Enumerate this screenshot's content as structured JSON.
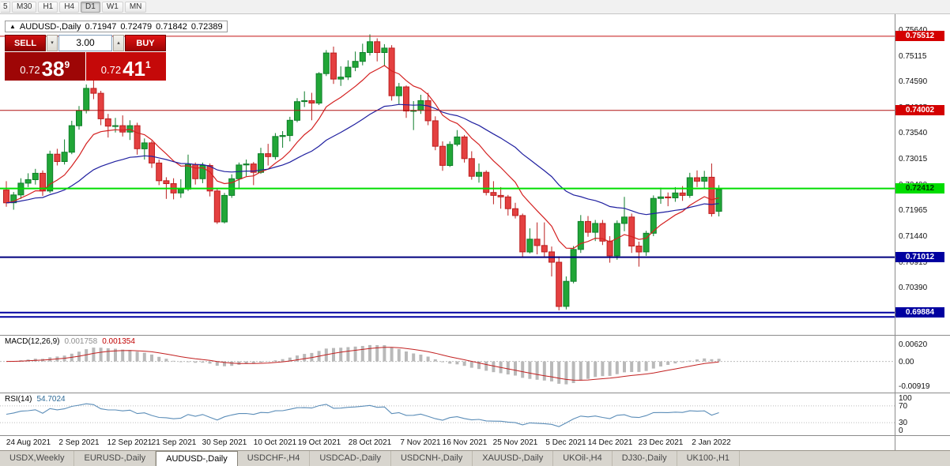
{
  "icons": {
    "collapse": "▲",
    "spin_up": "▴",
    "spin_down": "▾"
  },
  "toolbar": {
    "partial": "5",
    "active": "D1",
    "timeframes": [
      "M30",
      "H1",
      "H4",
      "D1",
      "W1",
      "MN"
    ]
  },
  "chart": {
    "symbol": "AUDUSD-,Daily",
    "ohlc": {
      "o": "0.71947",
      "h": "0.72479",
      "l": "0.71842",
      "c": "0.72389"
    },
    "trade": {
      "sell_label": "SELL",
      "buy_label": "BUY",
      "volume": "3.00",
      "sell_price": {
        "base": "0.72",
        "big": "38",
        "sup": "9"
      },
      "buy_price": {
        "base": "0.72",
        "big": "41",
        "sup": "1"
      }
    },
    "hlines": [
      {
        "price": 0.75512,
        "label": "0.75512",
        "color": "#c41414",
        "width": 1,
        "badge": "#d40000",
        "text": "#ffffff"
      },
      {
        "price": 0.74002,
        "label": "0.74002",
        "color": "#b01212",
        "width": 1,
        "badge": "#d40000",
        "text": "#ffffff"
      },
      {
        "price": 0.72412,
        "label": "0.72412",
        "color": "#00dd00",
        "width": 2,
        "badge": "#00dd00",
        "text": "#003300"
      },
      {
        "price": 0.71012,
        "label": "0.71012",
        "color": "#00007e",
        "width": 2,
        "badge": "#0000a0",
        "text": "#ffffff"
      },
      {
        "price": 0.69884,
        "label": "0.69884",
        "color": "#0000a0",
        "width": 2,
        "badge": "#0000a0",
        "text": "#ffffff"
      },
      {
        "price": 0.69795,
        "label": "",
        "color": "#0000a0",
        "width": 2,
        "badge": "",
        "text": ""
      }
    ],
    "axis_prices": [
      "0.75640",
      "0.75115",
      "0.74590",
      "0.74065",
      "0.73540",
      "0.73015",
      "0.72490",
      "0.71965",
      "0.71440",
      "0.70915",
      "0.70390",
      "0.69865"
    ],
    "date_labels": [
      {
        "text": "24 Aug 2021",
        "index": 3
      },
      {
        "text": "2 Sep 2021",
        "index": 10
      },
      {
        "text": "12 Sep 2021",
        "index": 17
      },
      {
        "text": "21 Sep 2021",
        "index": 23
      },
      {
        "text": "30 Sep 2021",
        "index": 30
      },
      {
        "text": "10 Oct 2021",
        "index": 37
      },
      {
        "text": "19 Oct 2021",
        "index": 43
      },
      {
        "text": "28 Oct 2021",
        "index": 50
      },
      {
        "text": "7 Nov 2021",
        "index": 57
      },
      {
        "text": "16 Nov 2021",
        "index": 63
      },
      {
        "text": "25 Nov 2021",
        "index": 70
      },
      {
        "text": "5 Dec 2021",
        "index": 77
      },
      {
        "text": "14 Dec 2021",
        "index": 83
      },
      {
        "text": "23 Dec 2021",
        "index": 90
      },
      {
        "text": "2 Jan 2022",
        "index": 97
      }
    ]
  },
  "macd": {
    "label": "MACD(12,26,9)",
    "value_main": "0.001758",
    "value_signal": "0.001354",
    "axis": [
      {
        "text": "0.00620",
        "value": 0.0062
      },
      {
        "text": "0.00",
        "value": 0
      },
      {
        "text": "-0.00919",
        "value": -0.00919
      }
    ]
  },
  "rsi": {
    "label": "RSI(14)",
    "value": "54.7024",
    "levels": [
      70,
      30
    ],
    "axis": [
      {
        "text": "100",
        "value": 100
      },
      {
        "text": "70",
        "value": 70
      },
      {
        "text": "30",
        "value": 30
      },
      {
        "text": "0",
        "value": 0
      }
    ]
  },
  "tabs": {
    "active": "AUDUSD-,Daily",
    "items": [
      "USDX,Weekly",
      "EURUSD-,Daily",
      "AUDUSD-,Daily",
      "USDCHF-,H4",
      "USDCAD-,Daily",
      "USDCNH-,Daily",
      "XAUUSD-,Daily",
      "UKOil-,H4",
      "DJ30-,Daily",
      "UK100-,H1"
    ]
  },
  "chart_data": {
    "type": "candlestick",
    "symbol": "AUDUSD",
    "timeframe": "Daily",
    "price_max": 0.7596,
    "price_min": 0.6943,
    "up_color": "#21a637",
    "up_border": "#0e7e2a",
    "down_color": "#e44040",
    "down_border": "#bc1f1f",
    "ma_fast": {
      "type": "ema",
      "period": 10,
      "color": "#d42020"
    },
    "ma_slow": {
      "type": "ema",
      "period": 30,
      "color": "#2020a0"
    },
    "macd_params": [
      12,
      26,
      9
    ],
    "macd_range": [
      0.0095,
      -0.0115
    ],
    "rsi_period": 14,
    "candles": [
      [
        0.7238,
        0.7256,
        0.7204,
        0.7212
      ],
      [
        0.7212,
        0.7234,
        0.7198,
        0.7228
      ],
      [
        0.7228,
        0.7262,
        0.722,
        0.7252
      ],
      [
        0.7252,
        0.7272,
        0.7244,
        0.7259
      ],
      [
        0.7259,
        0.7281,
        0.7249,
        0.7272
      ],
      [
        0.7272,
        0.7278,
        0.7226,
        0.7236
      ],
      [
        0.7236,
        0.7318,
        0.7232,
        0.7311
      ],
      [
        0.7311,
        0.7322,
        0.7288,
        0.7296
      ],
      [
        0.7296,
        0.7341,
        0.729,
        0.7315
      ],
      [
        0.7315,
        0.7379,
        0.7311,
        0.7369
      ],
      [
        0.7369,
        0.7409,
        0.7361,
        0.74
      ],
      [
        0.74,
        0.7453,
        0.7394,
        0.7445
      ],
      [
        0.7445,
        0.7462,
        0.7423,
        0.7435
      ],
      [
        0.7435,
        0.744,
        0.737,
        0.7383
      ],
      [
        0.7383,
        0.7393,
        0.7345,
        0.7368
      ],
      [
        0.7368,
        0.7385,
        0.7355,
        0.7369
      ],
      [
        0.7369,
        0.739,
        0.7347,
        0.7356
      ],
      [
        0.7356,
        0.738,
        0.734,
        0.7369
      ],
      [
        0.7369,
        0.7375,
        0.731,
        0.7322
      ],
      [
        0.7322,
        0.7343,
        0.73,
        0.7334
      ],
      [
        0.7334,
        0.7338,
        0.7283,
        0.7293
      ],
      [
        0.7293,
        0.73,
        0.7248,
        0.7257
      ],
      [
        0.7257,
        0.7264,
        0.722,
        0.7251
      ],
      [
        0.7251,
        0.7262,
        0.7219,
        0.7232
      ],
      [
        0.7232,
        0.726,
        0.7222,
        0.724
      ],
      [
        0.724,
        0.731,
        0.7236,
        0.729
      ],
      [
        0.729,
        0.7294,
        0.7249,
        0.7261
      ],
      [
        0.7261,
        0.7294,
        0.7252,
        0.7288
      ],
      [
        0.7288,
        0.7292,
        0.7225,
        0.7236
      ],
      [
        0.7236,
        0.7242,
        0.7169,
        0.7173
      ],
      [
        0.7173,
        0.7232,
        0.717,
        0.7227
      ],
      [
        0.7227,
        0.727,
        0.7222,
        0.7261
      ],
      [
        0.7261,
        0.7294,
        0.724,
        0.7289
      ],
      [
        0.7289,
        0.73,
        0.7266,
        0.7291
      ],
      [
        0.7291,
        0.7295,
        0.7248,
        0.7274
      ],
      [
        0.7274,
        0.7324,
        0.7271,
        0.7312
      ],
      [
        0.7312,
        0.7332,
        0.7288,
        0.7306
      ],
      [
        0.7306,
        0.7354,
        0.73,
        0.7347
      ],
      [
        0.7347,
        0.7358,
        0.7324,
        0.7349
      ],
      [
        0.7349,
        0.7387,
        0.7337,
        0.738
      ],
      [
        0.738,
        0.7425,
        0.7376,
        0.7418
      ],
      [
        0.7418,
        0.7439,
        0.7407,
        0.742
      ],
      [
        0.742,
        0.7436,
        0.738,
        0.7415
      ],
      [
        0.7415,
        0.7478,
        0.7411,
        0.7475
      ],
      [
        0.7475,
        0.7523,
        0.747,
        0.7517
      ],
      [
        0.7517,
        0.753,
        0.7454,
        0.7464
      ],
      [
        0.7464,
        0.749,
        0.745,
        0.7468
      ],
      [
        0.7468,
        0.7502,
        0.7462,
        0.7488
      ],
      [
        0.7488,
        0.752,
        0.748,
        0.75
      ],
      [
        0.75,
        0.7536,
        0.7492,
        0.7518
      ],
      [
        0.7518,
        0.7555,
        0.7512,
        0.754
      ],
      [
        0.754,
        0.7547,
        0.75,
        0.7518
      ],
      [
        0.7518,
        0.7535,
        0.749,
        0.7527
      ],
      [
        0.7527,
        0.7533,
        0.742,
        0.743
      ],
      [
        0.743,
        0.7456,
        0.7412,
        0.7448
      ],
      [
        0.7448,
        0.7451,
        0.7385,
        0.7399
      ],
      [
        0.7399,
        0.7419,
        0.736,
        0.74
      ],
      [
        0.74,
        0.7432,
        0.7393,
        0.742
      ],
      [
        0.742,
        0.7436,
        0.737,
        0.7379
      ],
      [
        0.7379,
        0.7388,
        0.7319,
        0.7327
      ],
      [
        0.7327,
        0.7337,
        0.7277,
        0.7288
      ],
      [
        0.7288,
        0.7337,
        0.7285,
        0.7331
      ],
      [
        0.7331,
        0.736,
        0.7327,
        0.7346
      ],
      [
        0.7346,
        0.735,
        0.7294,
        0.7302
      ],
      [
        0.7302,
        0.7317,
        0.7259,
        0.7266
      ],
      [
        0.7266,
        0.7292,
        0.7253,
        0.7274
      ],
      [
        0.7274,
        0.7278,
        0.7227,
        0.7233
      ],
      [
        0.7233,
        0.7256,
        0.7209,
        0.7227
      ],
      [
        0.7227,
        0.7244,
        0.72,
        0.7224
      ],
      [
        0.7224,
        0.7228,
        0.7186,
        0.72
      ],
      [
        0.72,
        0.7212,
        0.718,
        0.7186
      ],
      [
        0.7186,
        0.719,
        0.71,
        0.7112
      ],
      [
        0.7112,
        0.716,
        0.7109,
        0.7138
      ],
      [
        0.7138,
        0.7172,
        0.7107,
        0.7125
      ],
      [
        0.7125,
        0.7172,
        0.71,
        0.7112
      ],
      [
        0.7112,
        0.7123,
        0.7062,
        0.7091
      ],
      [
        0.7091,
        0.7103,
        0.6993,
        0.7001
      ],
      [
        0.7001,
        0.7062,
        0.6995,
        0.7052
      ],
      [
        0.7052,
        0.7124,
        0.7048,
        0.7117
      ],
      [
        0.7117,
        0.7187,
        0.711,
        0.7174
      ],
      [
        0.7174,
        0.7185,
        0.7143,
        0.7152
      ],
      [
        0.7152,
        0.7177,
        0.7134,
        0.717
      ],
      [
        0.717,
        0.7177,
        0.7126,
        0.7134
      ],
      [
        0.7134,
        0.7144,
        0.709,
        0.7104
      ],
      [
        0.7104,
        0.7176,
        0.7096,
        0.717
      ],
      [
        0.717,
        0.7224,
        0.7154,
        0.7183
      ],
      [
        0.7183,
        0.719,
        0.711,
        0.7124
      ],
      [
        0.7124,
        0.7133,
        0.7082,
        0.7112
      ],
      [
        0.7112,
        0.7155,
        0.7104,
        0.715
      ],
      [
        0.715,
        0.7227,
        0.7144,
        0.7221
      ],
      [
        0.7221,
        0.7243,
        0.721,
        0.7224
      ],
      [
        0.7224,
        0.7233,
        0.7205,
        0.7222
      ],
      [
        0.7222,
        0.7244,
        0.7214,
        0.7232
      ],
      [
        0.7232,
        0.7246,
        0.7216,
        0.7227
      ],
      [
        0.7227,
        0.7273,
        0.7222,
        0.7263
      ],
      [
        0.7263,
        0.7278,
        0.7244,
        0.7256
      ],
      [
        0.7256,
        0.7277,
        0.724,
        0.7264
      ],
      [
        0.7264,
        0.7292,
        0.7184,
        0.719
      ],
      [
        0.71947,
        0.72479,
        0.71842,
        0.72389
      ]
    ]
  }
}
